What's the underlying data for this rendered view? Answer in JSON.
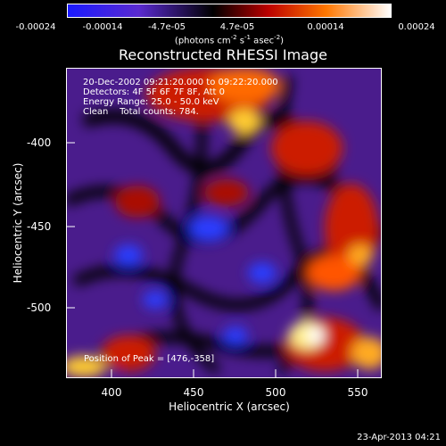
{
  "colorbar": {
    "ticks": [
      "-0.00024",
      "-0.00014",
      "-4.7e-05",
      "4.7e-05",
      "0.00014",
      "0.00024"
    ],
    "unit_main": "(photons cm",
    "unit_e1": "-2",
    "unit_mid": " s",
    "unit_e2": "-1",
    "unit_after": " asec",
    "unit_e3": "-2",
    "unit_close": ")",
    "range": [
      -0.00024,
      0.00024
    ],
    "colors": [
      "#1a1aff",
      "#000000",
      "#cc0000",
      "#ff6600",
      "#ffffff"
    ]
  },
  "chart_data": {
    "type": "heatmap",
    "title": "Reconstructed RHESSI Image",
    "xlabel": "Heliocentric X (arcsec)",
    "ylabel": "Heliocentric Y (arcsec)",
    "xlim": [
      372,
      565
    ],
    "ylim": [
      -540,
      -355
    ],
    "x_ticks": [
      400,
      450,
      500,
      550
    ],
    "y_ticks": [
      -400,
      -450,
      -500
    ],
    "annotations": {
      "line1": "20-Dec-2002 09:21:20.000 to 09:22:20.000",
      "line2": "Detectors: 4F 5F 6F 7F 8F, Att 0",
      "line3": "Energy Range: 25.0 - 50.0 keV",
      "line4": "Clean    Total counts: 784.",
      "peak": "Position of Peak = [476,-358]"
    },
    "peak_position": [
      476,
      -358
    ]
  },
  "footer": {
    "timestamp": "23-Apr-2013 04:21"
  }
}
